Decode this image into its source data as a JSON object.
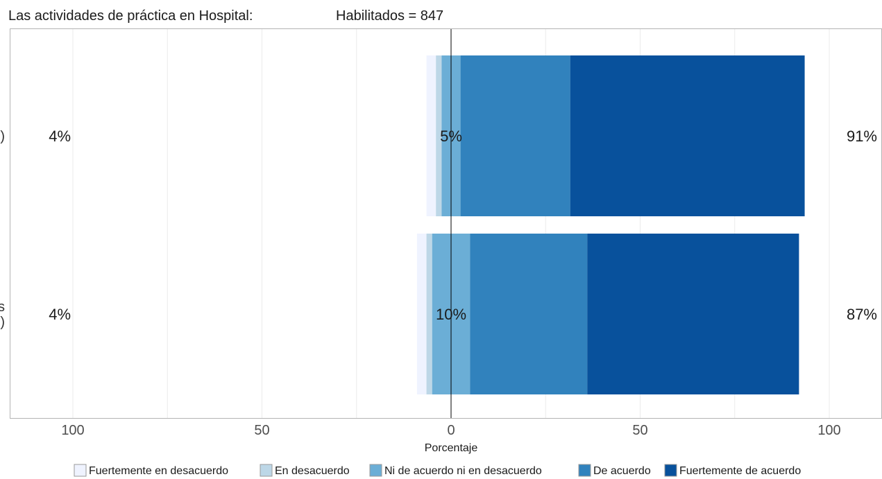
{
  "chart_data": {
    "type": "bar",
    "orientation": "horizontal",
    "stacked": "diverging",
    "title": "Las actividades de práctica en Hospital:",
    "subtitle": "Habilitados = 847",
    "xlabel": "Porcentaje",
    "xlim": [
      -100,
      100
    ],
    "x_tick_labels": [
      "100",
      "50",
      "0",
      "50",
      "100"
    ],
    "x_tick_values": [
      -100,
      -50,
      0,
      50,
      100
    ],
    "grid": true,
    "legend_position": "bottom",
    "categories": [
      ")",
      "s\n)"
    ],
    "series": [
      {
        "name": "Fuertemente en desacuerdo",
        "color": "#eff3ff",
        "values": [
          2.5,
          2.5
        ]
      },
      {
        "name": "En desacuerdo",
        "color": "#bdd7e7",
        "values": [
          1.5,
          1.5
        ]
      },
      {
        "name": "Ni de acuerdo ni en desacuerdo",
        "color": "#6baed6",
        "values": [
          5,
          10
        ]
      },
      {
        "name": "De acuerdo",
        "color": "#3182bd",
        "values": [
          29,
          31
        ]
      },
      {
        "name": "Fuertemente de acuerdo",
        "color": "#08519c",
        "values": [
          62,
          56
        ]
      }
    ],
    "row_labels": [
      {
        "left": "4%",
        "center": "5%",
        "right": "91%"
      },
      {
        "left": "4%",
        "center": "10%",
        "right": "87%"
      }
    ]
  }
}
